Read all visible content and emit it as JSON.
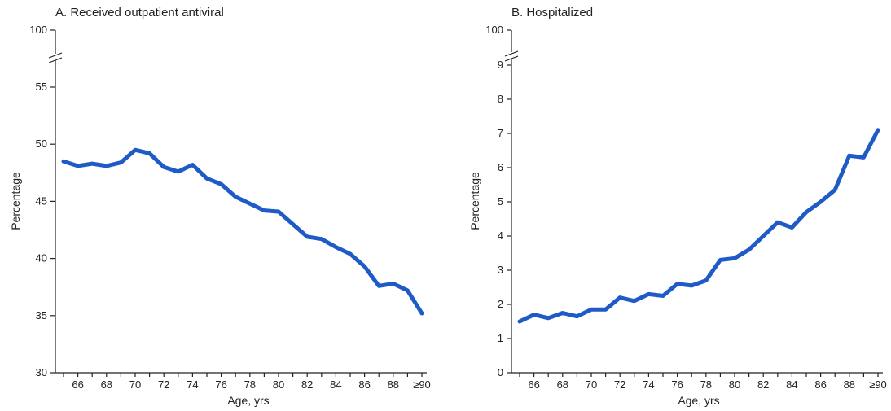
{
  "chart_data": [
    {
      "type": "line",
      "title": "A. Received outpatient antiviral",
      "xlabel": "Age, yrs",
      "ylabel": "Percentage",
      "x": [
        65,
        66,
        67,
        68,
        69,
        70,
        71,
        72,
        73,
        74,
        75,
        76,
        77,
        78,
        79,
        80,
        81,
        82,
        83,
        84,
        85,
        86,
        87,
        88,
        89,
        90
      ],
      "x_tick_values": [
        66,
        68,
        70,
        72,
        74,
        76,
        78,
        80,
        82,
        84,
        86,
        88,
        90
      ],
      "x_tick_labels": [
        "66",
        "68",
        "70",
        "72",
        "74",
        "76",
        "78",
        "80",
        "82",
        "84",
        "86",
        "88",
        "≥90"
      ],
      "y_ticks_lower": [
        30,
        35,
        40,
        45,
        50,
        55
      ],
      "y_break_tick": 100,
      "ylim": [
        30,
        55
      ],
      "axis_break": true,
      "series": [
        {
          "color": "#1f5bc6",
          "values": [
            48.5,
            48.1,
            48.3,
            48.1,
            48.4,
            49.5,
            49.2,
            48.0,
            47.6,
            48.2,
            47.0,
            46.5,
            45.4,
            44.8,
            44.2,
            44.1,
            43.0,
            41.9,
            41.7,
            41.0,
            40.4,
            39.3,
            37.6,
            37.8,
            37.2,
            35.2
          ]
        }
      ]
    },
    {
      "type": "line",
      "title": "B. Hospitalized",
      "xlabel": "Age, yrs",
      "ylabel": "Percentage",
      "x": [
        65,
        66,
        67,
        68,
        69,
        70,
        71,
        72,
        73,
        74,
        75,
        76,
        77,
        78,
        79,
        80,
        81,
        82,
        83,
        84,
        85,
        86,
        87,
        88,
        89,
        90
      ],
      "x_tick_values": [
        66,
        68,
        70,
        72,
        74,
        76,
        78,
        80,
        82,
        84,
        86,
        88,
        90
      ],
      "x_tick_labels": [
        "66",
        "68",
        "70",
        "72",
        "74",
        "76",
        "78",
        "80",
        "82",
        "84",
        "86",
        "88",
        "≥90"
      ],
      "y_ticks_lower": [
        0,
        1,
        2,
        3,
        4,
        5,
        6,
        7,
        8,
        9
      ],
      "y_break_tick": 100,
      "ylim": [
        0,
        9
      ],
      "axis_break": true,
      "series": [
        {
          "color": "#1f5bc6",
          "values": [
            1.5,
            1.7,
            1.6,
            1.75,
            1.65,
            1.85,
            1.85,
            2.2,
            2.1,
            2.3,
            2.25,
            2.6,
            2.55,
            2.7,
            3.3,
            3.35,
            3.6,
            4.0,
            4.4,
            4.25,
            4.7,
            5.0,
            5.35,
            6.35,
            6.3,
            7.1
          ]
        }
      ]
    }
  ]
}
